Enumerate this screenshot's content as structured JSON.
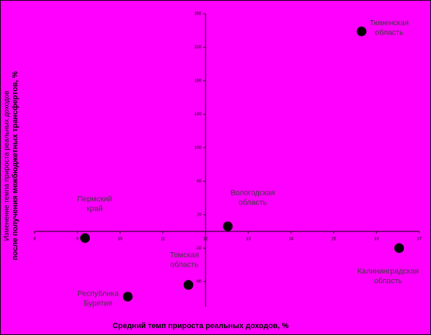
{
  "chart_data": {
    "type": "scatter",
    "xlabel": "Средний темп прироста реальных доходов, %",
    "ylabel": [
      "Изменение темпа прироста реальных доходов",
      "после получения межбюджетных трансфертов, %"
    ],
    "labels": [
      [
        "Тюменская",
        "область"
      ],
      [
        "Вологодская",
        "область"
      ],
      [
        "Пермский",
        "край"
      ],
      [
        "Калининградская",
        "область"
      ],
      [
        "Томская",
        "область"
      ],
      [
        "Республика",
        "Бурятия"
      ]
    ],
    "x": [
      15.65,
      12.52,
      9.18,
      16.53,
      11.6,
      10.18
    ],
    "y": [
      239,
      6,
      -8,
      -20,
      -64,
      -78
    ],
    "color": "#000000",
    "background": "#ff00ff",
    "xlim": [
      8,
      17
    ],
    "xticks": [
      8,
      9,
      10,
      11,
      12,
      13,
      14,
      15,
      16,
      17
    ],
    "ylim": [
      -90,
      260
    ],
    "yticks": [
      260,
      220,
      180,
      140,
      100,
      60,
      20,
      -20,
      -60
    ]
  }
}
